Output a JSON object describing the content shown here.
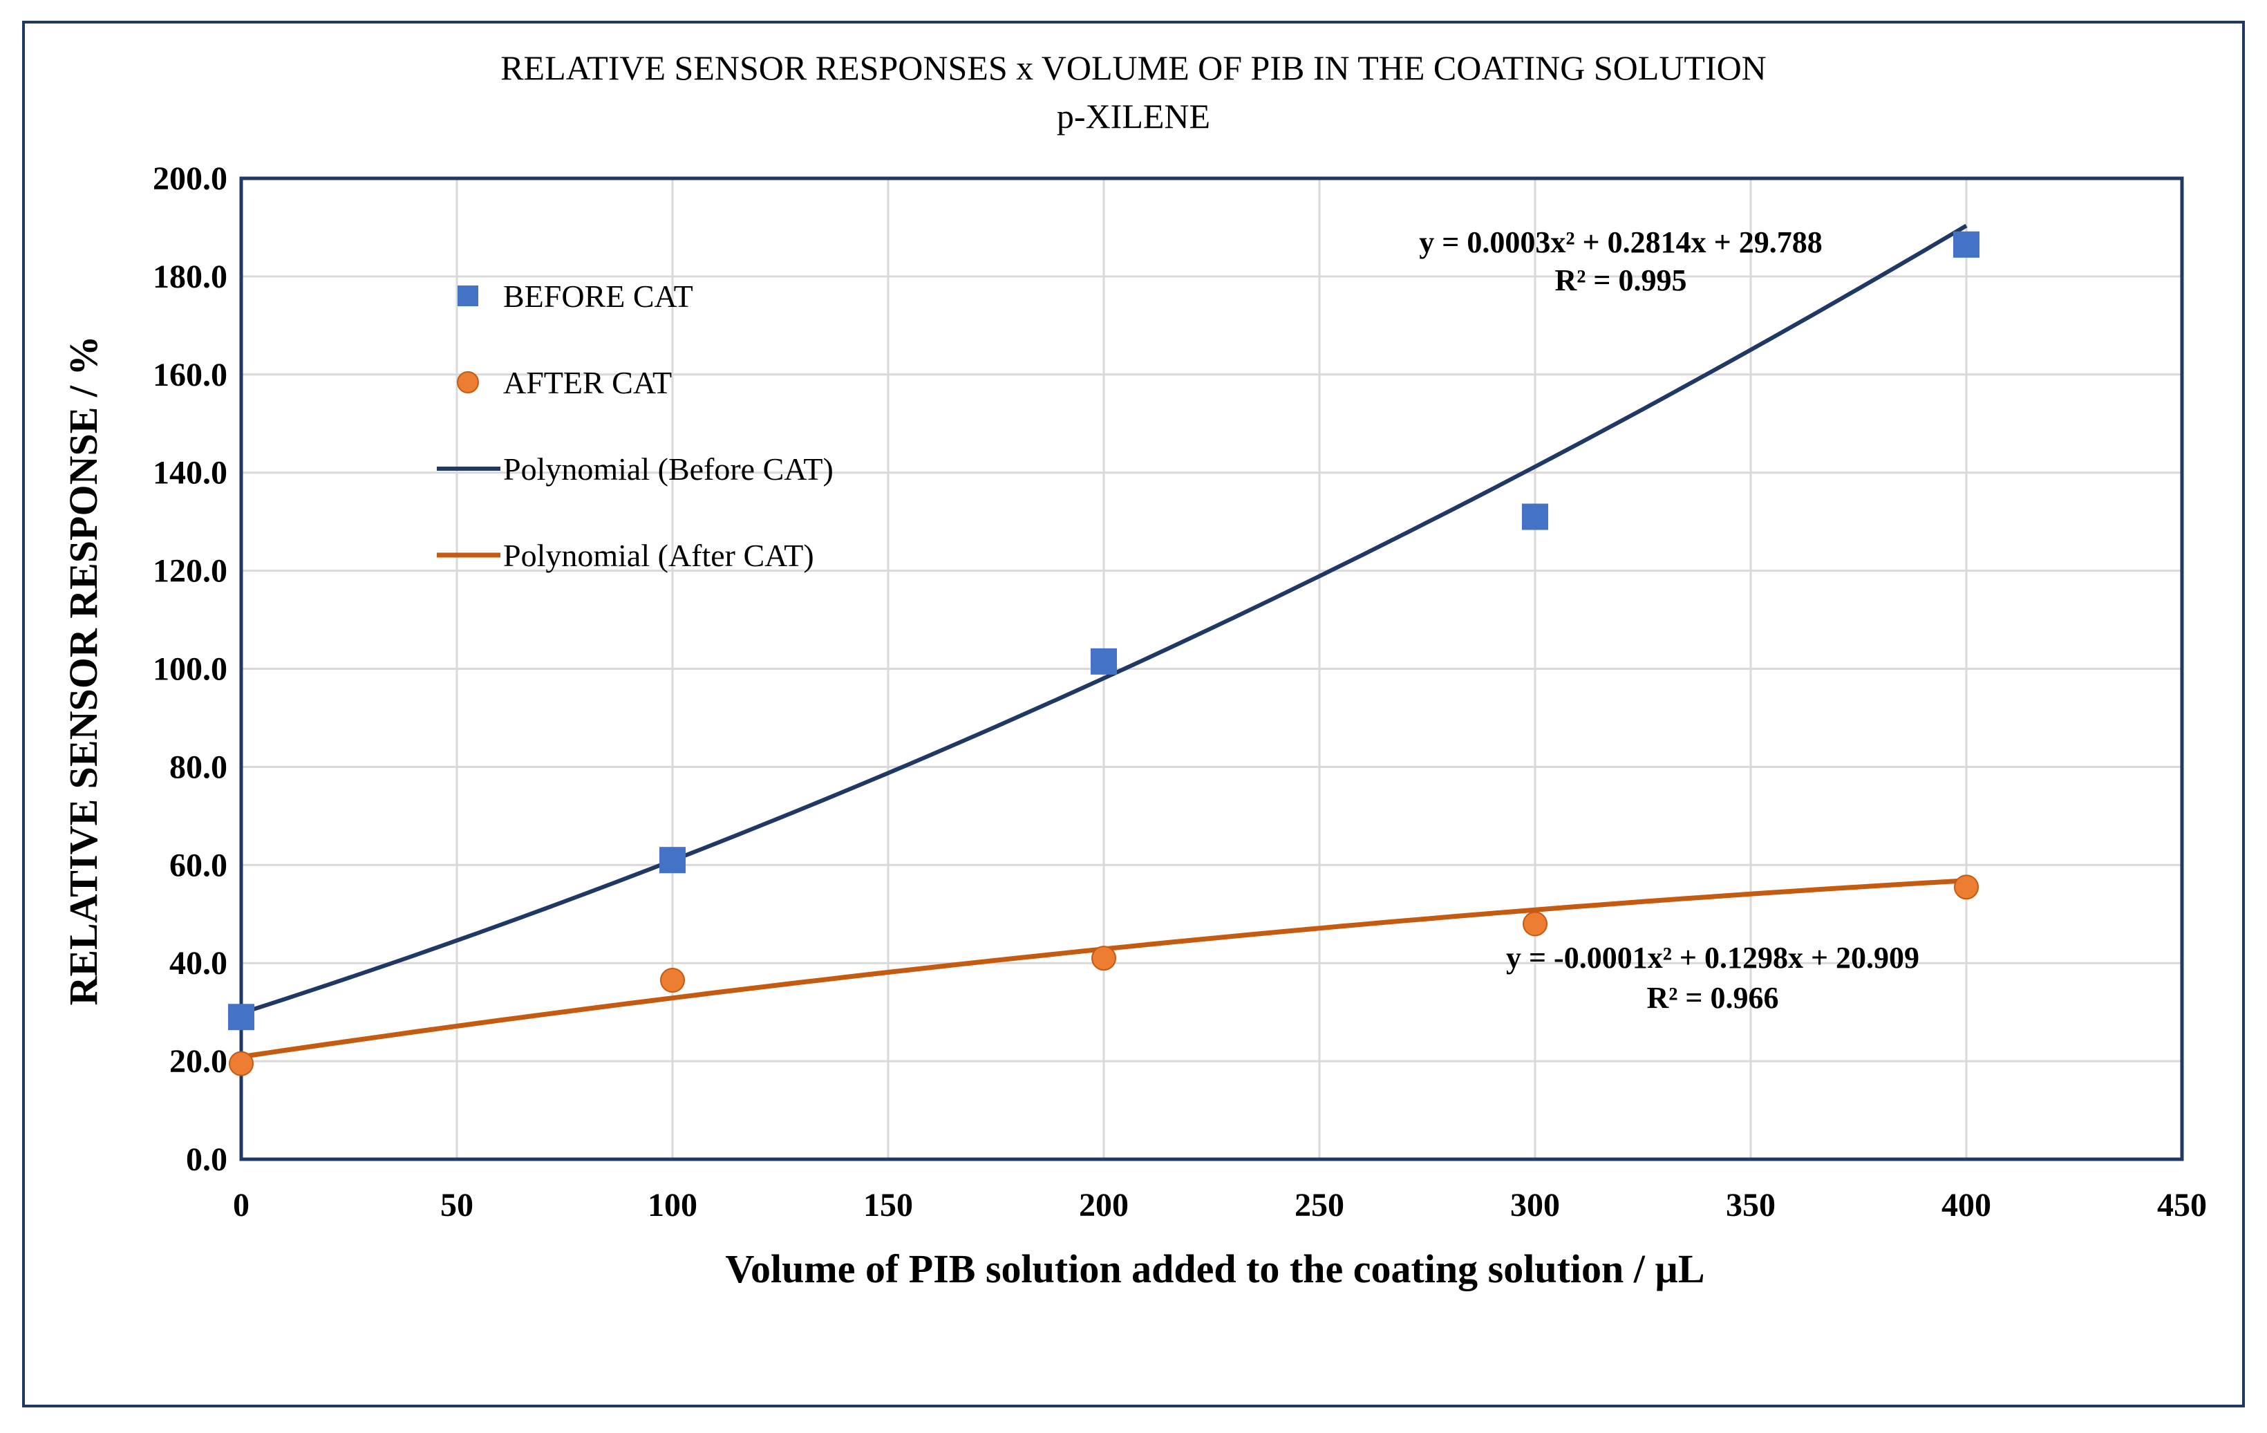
{
  "chart_data": {
    "type": "scatter",
    "title": "RELATIVE SENSOR RESPONSES x VOLUME OF PIB IN THE COATING SOLUTION",
    "subtitle": "p-XILENE",
    "xlabel": "Volume of PIB solution added to the coating solution / µL",
    "ylabel": "RELATIVE SENSOR RESPONSE / %",
    "xlim": [
      0,
      450
    ],
    "ylim": [
      0,
      200
    ],
    "x_ticks": [
      "0",
      "50",
      "100",
      "150",
      "200",
      "250",
      "300",
      "350",
      "400",
      "450"
    ],
    "y_ticks": [
      "0.0",
      "20.0",
      "40.0",
      "60.0",
      "80.0",
      "100.0",
      "120.0",
      "140.0",
      "160.0",
      "180.0",
      "200.0"
    ],
    "grid": true,
    "legend_position": "top-left",
    "series": [
      {
        "name": "BEFORE CAT",
        "marker": "square",
        "color": "#4472c4",
        "x": [
          0,
          100,
          200,
          300,
          400
        ],
        "y": [
          29.0,
          61.0,
          101.5,
          131.0,
          186.5
        ]
      },
      {
        "name": "AFTER CAT",
        "marker": "circle",
        "color": "#ed7d31",
        "x": [
          0,
          100,
          200,
          300,
          400
        ],
        "y": [
          19.5,
          36.5,
          41.0,
          48.0,
          55.5
        ]
      }
    ],
    "trendlines": [
      {
        "name": "Polynomial (Before CAT)",
        "color": "#1f3864",
        "coefficients": [
          0.0003,
          0.2814,
          29.788
        ],
        "equation": "y = 0.0003x² + 0.2814x + 29.788",
        "r2": "R² = 0.995"
      },
      {
        "name": "Polynomial (After CAT)",
        "color": "#c55a11",
        "coefficients": [
          -0.0001,
          0.1298,
          20.909
        ],
        "equation": "y = -0.0001x² + 0.1298x + 20.909",
        "r2": "R² = 0.966"
      }
    ]
  }
}
